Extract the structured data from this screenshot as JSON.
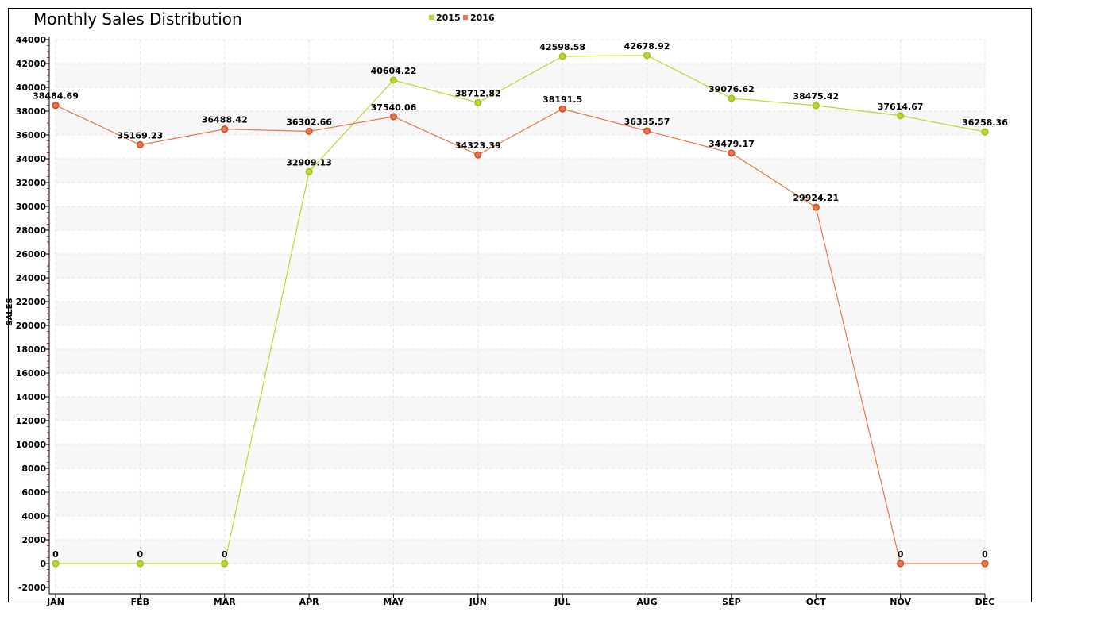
{
  "chart_data": {
    "type": "line",
    "title": "Monthly Sales Distribution",
    "xlabel": "",
    "ylabel": "SALES",
    "categories": [
      "JAN",
      "FEB",
      "MAR",
      "APR",
      "MAY",
      "JUN",
      "JUL",
      "AUG",
      "SEP",
      "OCT",
      "NOV",
      "DEC"
    ],
    "ylim": [
      -2000,
      44000
    ],
    "yticks": [
      -2000,
      0,
      2000,
      4000,
      6000,
      8000,
      10000,
      12000,
      14000,
      16000,
      18000,
      20000,
      22000,
      24000,
      26000,
      28000,
      30000,
      32000,
      34000,
      36000,
      38000,
      40000,
      42000,
      44000
    ],
    "grid": true,
    "legend_position": "top-center",
    "series": [
      {
        "name": "2015",
        "color": "#bcd630",
        "marker_color": "#a0c020",
        "values": [
          0,
          0,
          0,
          32909.13,
          40604.22,
          38712.82,
          42598.58,
          42678.92,
          39076.62,
          38475.42,
          37614.67,
          36258.36
        ],
        "labels": [
          "0",
          "0",
          "0",
          "32909.13",
          "40604.22",
          "38712.82",
          "42598.58",
          "42678.92",
          "39076.62",
          "38475.42",
          "37614.67",
          "36258.36"
        ]
      },
      {
        "name": "2016",
        "color": "#e8764a",
        "marker_color": "#cc4f24",
        "values": [
          38484.69,
          35169.23,
          36488.42,
          36302.66,
          37540.06,
          34323.39,
          38191.5,
          36335.57,
          34479.17,
          29924.21,
          0,
          0
        ],
        "labels": [
          "38484.69",
          "35169.23",
          "36488.42",
          "36302.66",
          "37540.06",
          "34323.39",
          "38191.5",
          "36335.57",
          "34479.17",
          "29924.21",
          "0",
          "0"
        ]
      }
    ]
  }
}
